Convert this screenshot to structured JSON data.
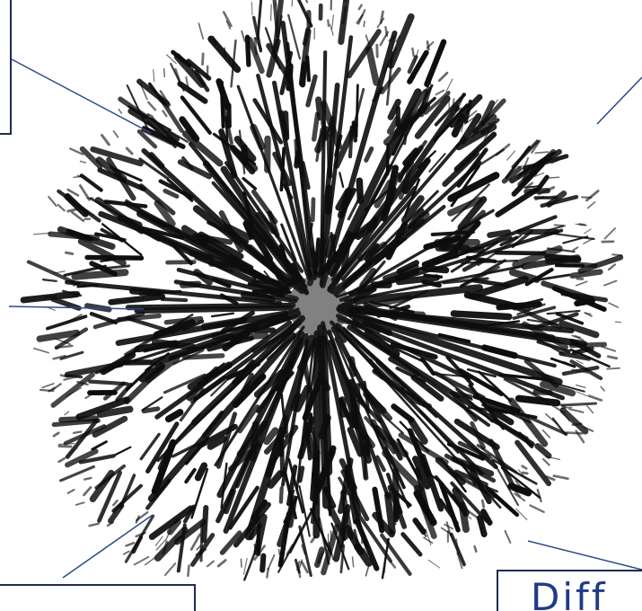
{
  "figure": {
    "subject": "radial-dendrite-crystal-pattern",
    "colors": {
      "ink": "#0d0d0d",
      "background": "#ffffff",
      "callout_line": "#2b4a8a",
      "callout_border": "#1e2a52",
      "callout_text": "#1e3a8a"
    }
  },
  "callouts": [
    {
      "id": "top-left",
      "text": ""
    },
    {
      "id": "top-right",
      "text": ""
    },
    {
      "id": "mid-left",
      "text": ""
    },
    {
      "id": "bottom-left",
      "text": ""
    },
    {
      "id": "bottom-right",
      "text": "Diff"
    }
  ]
}
